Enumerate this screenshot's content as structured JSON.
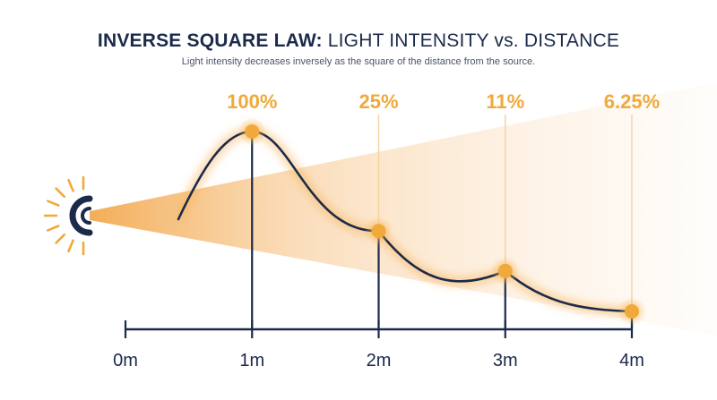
{
  "title": {
    "bold": "INVERSE SQUARE LAW:",
    "light": "LIGHT INTENSITY vs. DISTANCE"
  },
  "subtitle": "Light intensity decreases inversely as the square of the distance from the source.",
  "colors": {
    "navy": "#1b2a4a",
    "accent": "#f0a93a",
    "beam": "#f7c58a",
    "guide": "#f2d2a2"
  },
  "icons": [
    "light-source-icon"
  ],
  "chart_data": {
    "type": "line",
    "xlabel": "",
    "ylabel": "",
    "x_ticks": [
      "0m",
      "1m",
      "2m",
      "3m",
      "4m"
    ],
    "points": [
      {
        "x": 1,
        "label": "100%",
        "value": 100
      },
      {
        "x": 2,
        "label": "25%",
        "value": 25
      },
      {
        "x": 3,
        "label": "11%",
        "value": 11
      },
      {
        "x": 4,
        "label": "6.25%",
        "value": 6.25
      }
    ],
    "xlim": [
      0,
      4
    ],
    "grid": false,
    "legend": "none"
  }
}
